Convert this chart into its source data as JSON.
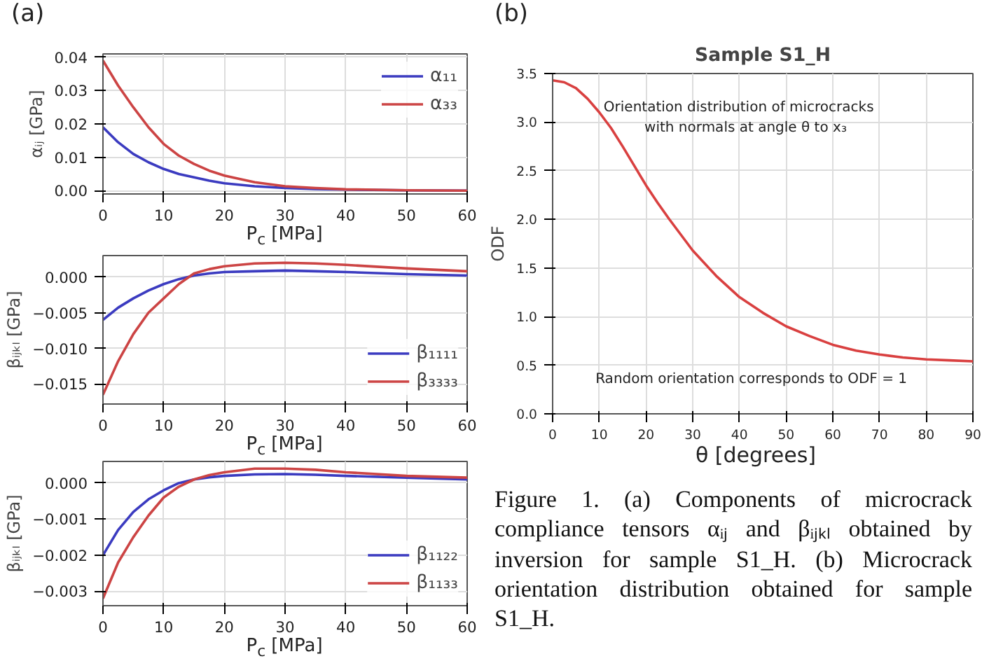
{
  "chart_data": [
    {
      "type": "line",
      "xlabel": "P$_{c}$ [MPa]",
      "ylabel": "αᵢⱼ [GPa]",
      "annotations": [
        "(a)"
      ],
      "x": [
        0,
        2.5,
        5,
        7.5,
        10,
        12.5,
        15,
        17.5,
        20,
        25,
        30,
        35,
        40,
        50,
        60
      ],
      "xlim": [
        0,
        60
      ],
      "xticks": [
        0,
        10,
        20,
        30,
        40,
        50,
        60
      ],
      "ylim": [
        -0.001,
        0.041
      ],
      "yticks": [
        {
          "value": 0,
          "label": "0.00"
        },
        {
          "value": 0.01,
          "label": "0.01"
        },
        {
          "value": 0.02,
          "label": "0.02"
        },
        {
          "value": 0.03,
          "label": "0.03"
        },
        {
          "value": 0.04,
          "label": "0.04"
        }
      ],
      "grid": true,
      "legend": "top right",
      "series": [
        {
          "name": "α₁₁",
          "color": "#3b3bc0",
          "values": [
            0.019,
            0.0145,
            0.011,
            0.0085,
            0.0065,
            0.005,
            0.004,
            0.003,
            0.0022,
            0.0013,
            0.0008,
            0.0005,
            0.0003,
            0.0001,
            0.0
          ]
        },
        {
          "name": "α₃₃",
          "color": "#cc4444",
          "values": [
            0.039,
            0.0315,
            0.025,
            0.019,
            0.014,
            0.0105,
            0.008,
            0.006,
            0.0045,
            0.0025,
            0.0013,
            0.0008,
            0.0004,
            0.0001,
            0.0
          ]
        }
      ]
    },
    {
      "type": "line",
      "xlabel": "P$_{c}$ [MPa]",
      "ylabel": "βᵢⱼₖₗ [GPa]",
      "x": [
        0,
        2.5,
        5,
        7.5,
        10,
        12.5,
        15,
        17.5,
        20,
        25,
        30,
        35,
        40,
        50,
        60
      ],
      "xlim": [
        0,
        60
      ],
      "xticks": [
        0,
        10,
        20,
        30,
        40,
        50,
        60
      ],
      "ylim": [
        -0.0178,
        0.003
      ],
      "yticks": [
        {
          "value": -0.015,
          "label": "−0.015"
        },
        {
          "value": -0.01,
          "label": "−0.010"
        },
        {
          "value": -0.005,
          "label": "−0.005"
        },
        {
          "value": 0,
          "label": "0.000"
        }
      ],
      "grid": true,
      "legend": "bottom right",
      "series": [
        {
          "name": "β₁₁₁₁",
          "color": "#3b3bc0",
          "values": [
            -0.006,
            -0.0043,
            -0.003,
            -0.0019,
            -0.001,
            -0.0003,
            0.0002,
            0.0005,
            0.0007,
            0.0008,
            0.0009,
            0.0008,
            0.0007,
            0.0004,
            0.0002
          ]
        },
        {
          "name": "β₃₃₃₃",
          "color": "#cc4444",
          "values": [
            -0.0165,
            -0.0118,
            -0.008,
            -0.005,
            -0.003,
            -0.001,
            0.0005,
            0.0011,
            0.0015,
            0.0019,
            0.002,
            0.0019,
            0.0017,
            0.0012,
            0.0008
          ]
        }
      ]
    },
    {
      "type": "line",
      "xlabel": "P$_{c}$ [MPa]",
      "ylabel": "βᵢⱼₖₗ [GPa]",
      "x": [
        0,
        2.5,
        5,
        7.5,
        10,
        12.5,
        15,
        17.5,
        20,
        25,
        30,
        35,
        40,
        50,
        60
      ],
      "xlim": [
        0,
        60
      ],
      "xticks": [
        0,
        10,
        20,
        30,
        40,
        50,
        60
      ],
      "ylim": [
        -0.0034,
        0.0006
      ],
      "yticks": [
        {
          "value": -0.003,
          "label": "−0.003"
        },
        {
          "value": -0.002,
          "label": "−0.002"
        },
        {
          "value": -0.001,
          "label": "−0.001"
        },
        {
          "value": 0,
          "label": "0.000"
        }
      ],
      "grid": true,
      "legend": "bottom right",
      "series": [
        {
          "name": "β₁₁₂₂",
          "color": "#3b3bc0",
          "values": [
            -0.002,
            -0.0013,
            -0.0008,
            -0.00045,
            -0.0002,
            0.0,
            0.0001,
            0.00016,
            0.0002,
            0.00024,
            0.00025,
            0.00023,
            0.0002,
            0.00015,
            0.0001
          ]
        },
        {
          "name": "β₁₁₃₃",
          "color": "#cc4444",
          "values": [
            -0.0032,
            -0.0022,
            -0.0015,
            -0.0009,
            -0.0004,
            -0.0001,
            0.0001,
            0.00022,
            0.0003,
            0.0004,
            0.0004,
            0.00037,
            0.0003,
            0.0002,
            0.00015
          ]
        }
      ]
    },
    {
      "type": "line",
      "title": "Sample S1_H",
      "xlabel": "θ [degrees]",
      "ylabel": "ODF",
      "annotations": [
        "(b)",
        "Orientation distribution of microcracks",
        "with normals at angle θ to x₃",
        "Random orientation corresponds to ODF = 1",
        "Figure 1. (a) Components of microcrack compliance tensors αᵢⱼ and βᵢⱼₖₗ obtained by inversion for sample S1_H. (b) Microcrack orientation distribution obtained for sample S1_H."
      ],
      "x": [
        0,
        2.5,
        5,
        7.5,
        10,
        12.5,
        15,
        17.5,
        20,
        22.5,
        25,
        30,
        35,
        40,
        45,
        50,
        55,
        60,
        65,
        70,
        75,
        80,
        85,
        90
      ],
      "xlim": [
        0,
        90
      ],
      "xticks": [
        0,
        10,
        20,
        30,
        40,
        50,
        60,
        70,
        80,
        90
      ],
      "ylim": [
        0,
        3.5
      ],
      "yticks": [
        {
          "value": 0,
          "label": "0.0"
        },
        {
          "value": 0.5,
          "label": "0.5"
        },
        {
          "value": 1,
          "label": "1.0"
        },
        {
          "value": 1.5,
          "label": "1.5"
        },
        {
          "value": 2,
          "label": "2.0"
        },
        {
          "value": 2.5,
          "label": "2.5"
        },
        {
          "value": 3,
          "label": "3.0"
        },
        {
          "value": 3.5,
          "label": "3.5"
        }
      ],
      "grid": true,
      "series": [
        {
          "color": "#d94040",
          "values": [
            3.43,
            3.41,
            3.35,
            3.24,
            3.1,
            2.94,
            2.75,
            2.55,
            2.35,
            2.17,
            2.0,
            1.68,
            1.42,
            1.2,
            1.04,
            0.9,
            0.8,
            0.71,
            0.65,
            0.61,
            0.58,
            0.56,
            0.55,
            0.54
          ]
        }
      ]
    }
  ]
}
